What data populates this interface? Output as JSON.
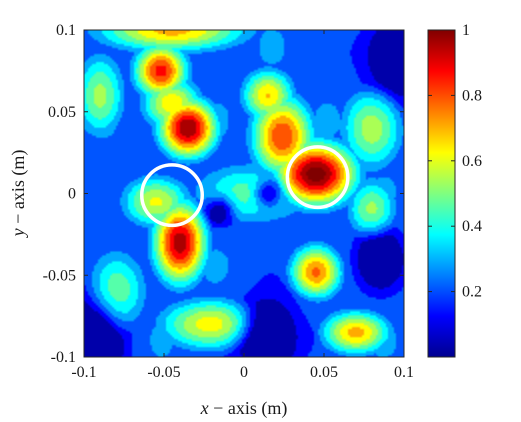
{
  "chart_data": {
    "type": "heatmap",
    "title": "",
    "xlabel": {
      "var": "x",
      "rest": " − axis (m)"
    },
    "ylabel": {
      "var": "y",
      "rest": " − axis (m)"
    },
    "xlim": [
      -0.1,
      0.1
    ],
    "ylim": [
      -0.1,
      0.1
    ],
    "xticks": [
      -0.1,
      -0.05,
      0,
      0.05,
      0.1
    ],
    "yticks": [
      -0.1,
      -0.05,
      0,
      0.05,
      0.1
    ],
    "xtick_labels": [
      "-0.1",
      "-0.05",
      "0",
      "0.05",
      "0.1"
    ],
    "ytick_labels": [
      "-0.1",
      "-0.05",
      "0",
      "0.05",
      "0.1"
    ],
    "colorbar": {
      "range": [
        0,
        1
      ],
      "ticks": [
        0.2,
        0.4,
        0.6,
        0.8,
        1
      ],
      "tick_labels": [
        "0.2",
        "0.4",
        "0.6",
        "0.8",
        "1"
      ],
      "colormap": "jet"
    },
    "field_peaks": [
      {
        "x": 0.045,
        "y": 0.012,
        "value": 1.0,
        "sx": 0.018,
        "sy": 0.014
      },
      {
        "x": 0.024,
        "y": 0.035,
        "value": 0.78,
        "sx": 0.014,
        "sy": 0.018
      },
      {
        "x": 0.015,
        "y": 0.06,
        "value": 0.62,
        "sx": 0.012,
        "sy": 0.012
      },
      {
        "x": -0.035,
        "y": 0.04,
        "value": 0.95,
        "sx": 0.013,
        "sy": 0.013
      },
      {
        "x": -0.052,
        "y": 0.075,
        "value": 0.82,
        "sx": 0.012,
        "sy": 0.012
      },
      {
        "x": -0.045,
        "y": 0.055,
        "value": 0.6,
        "sx": 0.014,
        "sy": 0.012
      },
      {
        "x": -0.04,
        "y": -0.03,
        "value": 0.92,
        "sx": 0.012,
        "sy": 0.018
      },
      {
        "x": -0.055,
        "y": -0.005,
        "value": 0.55,
        "sx": 0.016,
        "sy": 0.012
      },
      {
        "x": 0.045,
        "y": -0.048,
        "value": 0.72,
        "sx": 0.012,
        "sy": 0.012
      },
      {
        "x": 0.07,
        "y": -0.085,
        "value": 0.65,
        "sx": 0.016,
        "sy": 0.01
      },
      {
        "x": -0.02,
        "y": -0.08,
        "value": 0.58,
        "sx": 0.025,
        "sy": 0.012
      },
      {
        "x": -0.045,
        "y": 0.1,
        "value": 0.65,
        "sx": 0.035,
        "sy": 0.01
      },
      {
        "x": 0.08,
        "y": 0.04,
        "value": 0.5,
        "sx": 0.015,
        "sy": 0.02
      },
      {
        "x": 0.08,
        "y": -0.01,
        "value": 0.48,
        "sx": 0.012,
        "sy": 0.015
      },
      {
        "x": -0.09,
        "y": 0.06,
        "value": 0.48,
        "sx": 0.012,
        "sy": 0.02
      },
      {
        "x": 0.005,
        "y": 0.0,
        "value": 0.42,
        "sx": 0.03,
        "sy": 0.015
      },
      {
        "x": -0.08,
        "y": -0.06,
        "value": 0.45,
        "sx": 0.015,
        "sy": 0.02
      }
    ],
    "field_valleys": [
      {
        "x": -0.095,
        "y": -0.095,
        "depth": 0.45,
        "sx": 0.012,
        "sy": 0.02
      },
      {
        "x": 0.1,
        "y": 0.085,
        "depth": 0.5,
        "sx": 0.015,
        "sy": 0.015
      },
      {
        "x": 0.015,
        "y": -0.088,
        "depth": 0.45,
        "sx": 0.012,
        "sy": 0.015
      },
      {
        "x": 0.015,
        "y": 0.0,
        "depth": 0.35,
        "sx": 0.006,
        "sy": 0.006
      },
      {
        "x": -0.015,
        "y": -0.01,
        "depth": 0.3,
        "sx": 0.006,
        "sy": 0.006
      },
      {
        "x": 0.085,
        "y": -0.04,
        "depth": 0.35,
        "sx": 0.01,
        "sy": 0.012
      }
    ],
    "markers": [
      {
        "type": "circle",
        "x": 0.046,
        "y": 0.01,
        "r_data": 0.014,
        "color": "#ffffff"
      },
      {
        "type": "circle",
        "x": -0.045,
        "y": -0.001,
        "r_data": 0.014,
        "color": "#ffffff"
      }
    ]
  }
}
